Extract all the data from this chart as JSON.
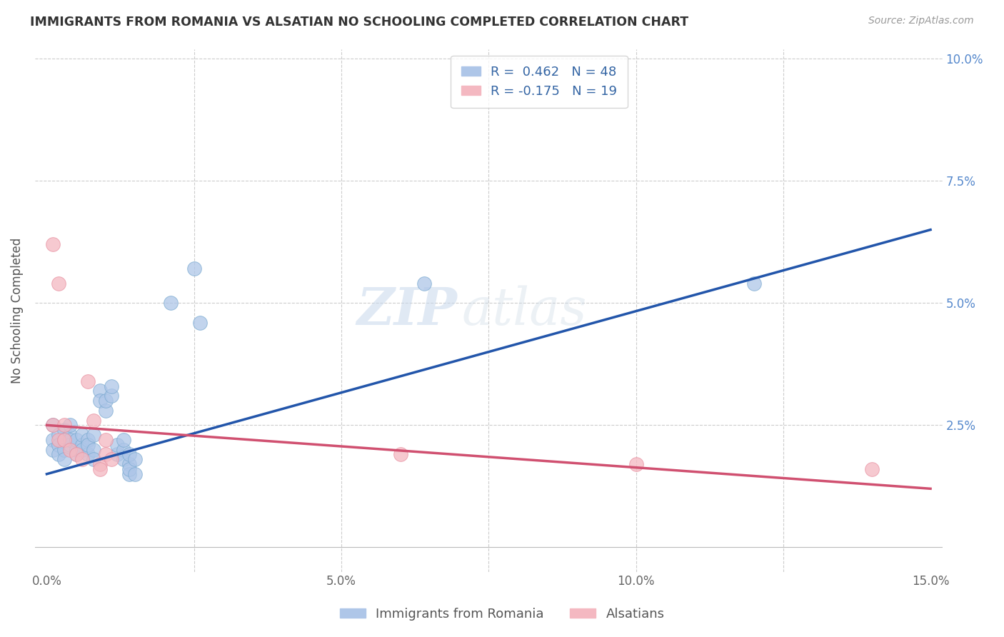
{
  "title": "IMMIGRANTS FROM ROMANIA VS ALSATIAN NO SCHOOLING COMPLETED CORRELATION CHART",
  "source": "Source: ZipAtlas.com",
  "ylabel": "No Schooling Completed",
  "xlim": [
    -0.002,
    0.152
  ],
  "ylim": [
    -0.005,
    0.102
  ],
  "blue_line_color": "#2255aa",
  "pink_line_color": "#d05070",
  "watermark_zip": "ZIP",
  "watermark_atlas": "atlas",
  "blue_scatter": [
    [
      0.001,
      0.025
    ],
    [
      0.001,
      0.022
    ],
    [
      0.001,
      0.02
    ],
    [
      0.002,
      0.023
    ],
    [
      0.002,
      0.021
    ],
    [
      0.002,
      0.019
    ],
    [
      0.003,
      0.024
    ],
    [
      0.003,
      0.022
    ],
    [
      0.003,
      0.02
    ],
    [
      0.003,
      0.018
    ],
    [
      0.004,
      0.023
    ],
    [
      0.004,
      0.021
    ],
    [
      0.004,
      0.025
    ],
    [
      0.004,
      0.022
    ],
    [
      0.005,
      0.02
    ],
    [
      0.005,
      0.022
    ],
    [
      0.005,
      0.019
    ],
    [
      0.006,
      0.021
    ],
    [
      0.006,
      0.023
    ],
    [
      0.006,
      0.02
    ],
    [
      0.007,
      0.022
    ],
    [
      0.007,
      0.019
    ],
    [
      0.007,
      0.021
    ],
    [
      0.008,
      0.023
    ],
    [
      0.008,
      0.02
    ],
    [
      0.008,
      0.018
    ],
    [
      0.009,
      0.032
    ],
    [
      0.009,
      0.03
    ],
    [
      0.01,
      0.028
    ],
    [
      0.01,
      0.03
    ],
    [
      0.011,
      0.031
    ],
    [
      0.011,
      0.033
    ],
    [
      0.012,
      0.019
    ],
    [
      0.012,
      0.021
    ],
    [
      0.013,
      0.02
    ],
    [
      0.013,
      0.018
    ],
    [
      0.013,
      0.022
    ],
    [
      0.014,
      0.017
    ],
    [
      0.014,
      0.015
    ],
    [
      0.014,
      0.019
    ],
    [
      0.014,
      0.016
    ],
    [
      0.015,
      0.018
    ],
    [
      0.015,
      0.015
    ],
    [
      0.021,
      0.05
    ],
    [
      0.025,
      0.057
    ],
    [
      0.026,
      0.046
    ],
    [
      0.064,
      0.054
    ],
    [
      0.12,
      0.054
    ]
  ],
  "pink_scatter": [
    [
      0.001,
      0.062
    ],
    [
      0.001,
      0.025
    ],
    [
      0.002,
      0.054
    ],
    [
      0.002,
      0.022
    ],
    [
      0.003,
      0.022
    ],
    [
      0.003,
      0.025
    ],
    [
      0.004,
      0.02
    ],
    [
      0.005,
      0.019
    ],
    [
      0.006,
      0.018
    ],
    [
      0.007,
      0.034
    ],
    [
      0.008,
      0.026
    ],
    [
      0.009,
      0.017
    ],
    [
      0.009,
      0.016
    ],
    [
      0.01,
      0.022
    ],
    [
      0.01,
      0.019
    ],
    [
      0.011,
      0.018
    ],
    [
      0.06,
      0.019
    ],
    [
      0.1,
      0.017
    ],
    [
      0.14,
      0.016
    ]
  ],
  "blue_line_x": [
    0.0,
    0.15
  ],
  "blue_line_y": [
    0.015,
    0.065
  ],
  "pink_line_x": [
    0.0,
    0.15
  ],
  "pink_line_y": [
    0.025,
    0.012
  ]
}
